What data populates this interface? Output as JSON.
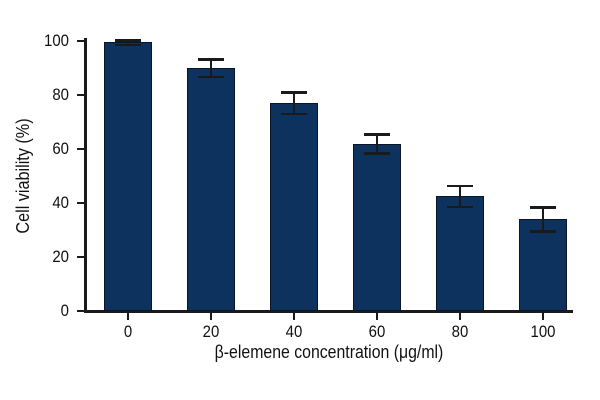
{
  "chart_data": {
    "type": "bar",
    "title": "",
    "xlabel": "β-elemene concentration (μg/ml)",
    "ylabel": "Cell viability (%)",
    "categories": [
      "0",
      "20",
      "40",
      "60",
      "80",
      "100"
    ],
    "values": [
      99.5,
      90,
      77,
      62,
      42.5,
      34
    ],
    "error_bars": [
      0.8,
      3.3,
      4,
      3.5,
      3.8,
      4.5
    ],
    "ylim": [
      0,
      100
    ],
    "yticks": [
      0,
      20,
      40,
      60,
      80,
      100
    ],
    "grid": false,
    "legend": "none",
    "colors": {
      "bar_fill": "#0e325e",
      "bar_edge": "#0a1626",
      "error_bar": "#1a1a1a",
      "axis": "#1a1a1a",
      "text": "#111111"
    }
  }
}
